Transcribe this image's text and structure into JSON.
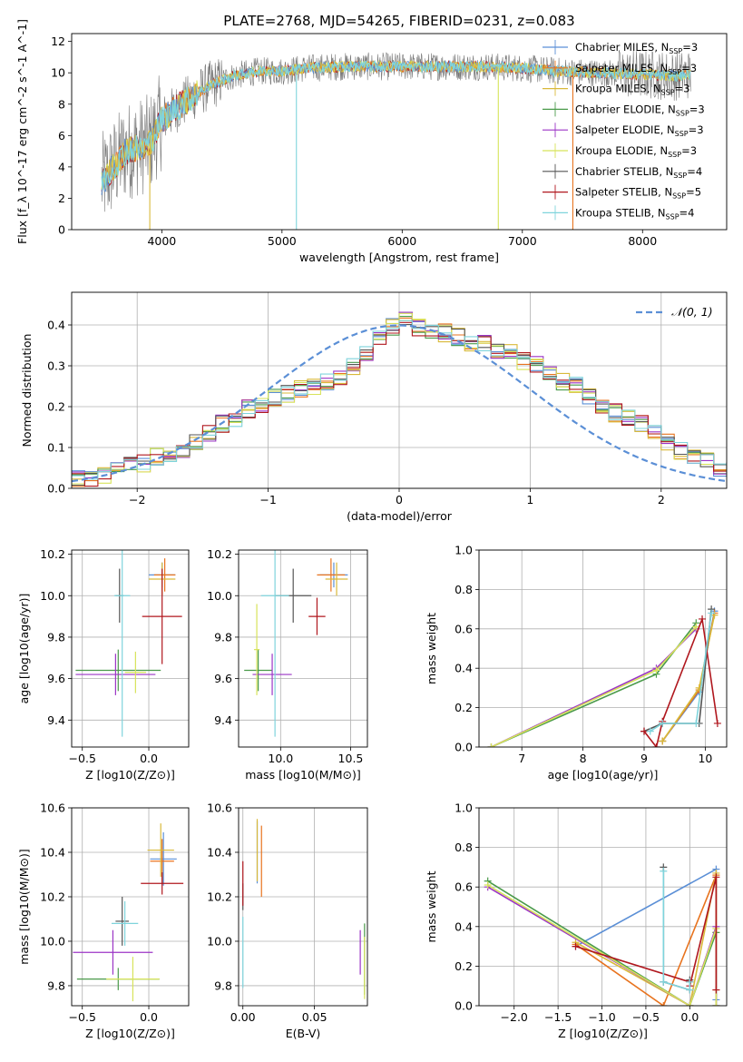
{
  "figure": {
    "title": "PLATE=2768, MJD=54265, FIBERID=0231, z=0.083"
  },
  "colors": {
    "Chabrier MILES": "#5b8fd6",
    "Salpeter MILES": "#e8731e",
    "Kroupa MILES": "#d9b93a",
    "Chabrier ELODIE": "#4a9a4a",
    "Salpeter ELODIE": "#9b34c6",
    "Kroupa ELODIE": "#d7e35a",
    "Chabrier STELIB": "#555555",
    "Salpeter STELIB": "#b0171e",
    "Kroupa STELIB": "#7fd4dc",
    "data": "#777777"
  },
  "chart_data": [
    {
      "id": "spectrum",
      "type": "line",
      "xlabel": "wavelength [Angstrom, rest frame]",
      "ylabel": "Flux [f_λ 10^-17 erg cm^-2 s^-1 A^-1]",
      "xlim": [
        3250,
        8700
      ],
      "ylim": [
        0,
        12.5
      ],
      "xticks": [
        4000,
        5000,
        6000,
        7000,
        8000
      ],
      "yticks": [
        0,
        2,
        4,
        6,
        8,
        10,
        12
      ],
      "grid": false,
      "legend_position": "right",
      "legend": [
        {
          "label": "Chabrier MILES, N",
          "sub": "SSP",
          "rest": "=3",
          "key": "Chabrier MILES"
        },
        {
          "label": "Salpeter MILES, N",
          "sub": "SSP",
          "rest": "=3",
          "key": "Salpeter MILES"
        },
        {
          "label": "Kroupa MILES, N",
          "sub": "SSP",
          "rest": "=3",
          "key": "Kroupa MILES"
        },
        {
          "label": "Chabrier ELODIE, N",
          "sub": "SSP",
          "rest": "=3",
          "key": "Chabrier ELODIE"
        },
        {
          "label": "Salpeter ELODIE, N",
          "sub": "SSP",
          "rest": "=3",
          "key": "Salpeter ELODIE"
        },
        {
          "label": "Kroupa ELODIE, N",
          "sub": "SSP",
          "rest": "=3",
          "key": "Kroupa ELODIE"
        },
        {
          "label": "Chabrier STELIB, N",
          "sub": "SSP",
          "rest": "=4",
          "key": "Chabrier STELIB"
        },
        {
          "label": "Salpeter STELIB, N",
          "sub": "SSP",
          "rest": "=5",
          "key": "Salpeter STELIB"
        },
        {
          "label": "Kroupa STELIB, N",
          "sub": "SSP",
          "rest": "=4",
          "key": "Kroupa STELIB"
        }
      ],
      "continuum": {
        "x": [
          3500,
          3700,
          3900,
          4000,
          4200,
          4400,
          4600,
          4800,
          5000,
          5200,
          5500,
          5800,
          6100,
          6400,
          6700,
          7000,
          7300,
          7600,
          8000,
          8300,
          8400
        ],
        "y": [
          3.0,
          5.0,
          5.5,
          7.0,
          8.2,
          9.2,
          9.8,
          10.1,
          10.1,
          10.3,
          10.4,
          10.4,
          10.4,
          10.4,
          10.4,
          10.3,
          10.1,
          10.0,
          9.9,
          9.8,
          9.9
        ]
      },
      "dropouts": [
        {
          "wavelength": 3900,
          "series": "Kroupa MILES",
          "to": 0
        },
        {
          "wavelength": 5120,
          "series": "Kroupa STELIB",
          "to": 0
        },
        {
          "wavelength": 6800,
          "series": "Kroupa ELODIE",
          "to": 0
        },
        {
          "wavelength": 7420,
          "series": "Salpeter MILES",
          "to": 0
        }
      ]
    },
    {
      "id": "residuals",
      "type": "line",
      "xlabel": "(data-model)/error",
      "ylabel": "Normed distribution",
      "xlim": [
        -2.5,
        2.5
      ],
      "ylim": [
        0,
        0.48
      ],
      "xticks": [
        -2,
        -1,
        0,
        1,
        2
      ],
      "yticks": [
        0.0,
        0.1,
        0.2,
        0.3,
        0.4
      ],
      "grid": true,
      "legend_position": "top-right",
      "legend_label": "𝒩(0, 1)",
      "bins_left": -2.5,
      "bin_width": 0.1,
      "reference_values": [
        0.022,
        0.026,
        0.034,
        0.045,
        0.055,
        0.062,
        0.078,
        0.088,
        0.097,
        0.112,
        0.135,
        0.158,
        0.172,
        0.195,
        0.205,
        0.223,
        0.232,
        0.241,
        0.25,
        0.258,
        0.272,
        0.295,
        0.335,
        0.368,
        0.395,
        0.42,
        0.395,
        0.378,
        0.38,
        0.37,
        0.355,
        0.352,
        0.34,
        0.33,
        0.31,
        0.305,
        0.278,
        0.262,
        0.252,
        0.228,
        0.2,
        0.185,
        0.172,
        0.158,
        0.138,
        0.112,
        0.09,
        0.082,
        0.075,
        0.052,
        0.045,
        0.04,
        0.035
      ]
    },
    {
      "id": "age-vs-Z",
      "type": "scatter",
      "xlabel": "Z [log10(Z/Z⊙)]",
      "ylabel": "age [log10(age/yr)]",
      "xlim": [
        -0.58,
        0.3
      ],
      "ylim": [
        9.27,
        10.22
      ],
      "xticks": [
        -0.5,
        0.0
      ],
      "yticks": [
        9.4,
        9.6,
        9.8,
        10.0,
        10.2
      ],
      "grid": true,
      "points": [
        {
          "x": 0.1,
          "y": 10.1,
          "xe": 0.1,
          "ye": 0.06,
          "s": "Chabrier MILES"
        },
        {
          "x": 0.12,
          "y": 10.1,
          "xe": 0.08,
          "ye": 0.08,
          "s": "Salpeter MILES"
        },
        {
          "x": 0.1,
          "y": 10.08,
          "xe": 0.1,
          "ye": 0.08,
          "s": "Kroupa MILES"
        },
        {
          "x": -0.23,
          "y": 9.64,
          "xe": 0.32,
          "ye": 0.1,
          "s": "Chabrier ELODIE"
        },
        {
          "x": -0.25,
          "y": 9.62,
          "xe": 0.3,
          "ye": 0.1,
          "s": "Salpeter ELODIE"
        },
        {
          "x": -0.1,
          "y": 9.63,
          "xe": 0.08,
          "ye": 0.1,
          "s": "Kroupa ELODIE"
        },
        {
          "x": -0.22,
          "y": 10.0,
          "xe": 0.03,
          "ye": 0.13,
          "s": "Chabrier STELIB"
        },
        {
          "x": 0.1,
          "y": 9.9,
          "xe": 0.15,
          "ye": 0.23,
          "s": "Salpeter STELIB"
        },
        {
          "x": -0.2,
          "y": 10.0,
          "xe": 0.06,
          "ye": 0.68,
          "s": "Kroupa STELIB"
        }
      ]
    },
    {
      "id": "age-vs-mass",
      "type": "scatter",
      "xlabel": "mass [log10(M/M⊙)]",
      "ylabel": "",
      "xlim": [
        9.7,
        10.62
      ],
      "ylim": [
        9.27,
        10.22
      ],
      "xticks": [
        10.0,
        10.5
      ],
      "yticks": [
        9.4,
        9.6,
        9.8,
        10.0,
        10.2
      ],
      "grid": true,
      "points": [
        {
          "x": 10.38,
          "y": 10.1,
          "xe": 0.1,
          "ye": 0.06,
          "s": "Chabrier MILES"
        },
        {
          "x": 10.36,
          "y": 10.1,
          "xe": 0.1,
          "ye": 0.08,
          "s": "Salpeter MILES"
        },
        {
          "x": 10.4,
          "y": 10.08,
          "xe": 0.08,
          "ye": 0.08,
          "s": "Kroupa MILES"
        },
        {
          "x": 9.84,
          "y": 9.64,
          "xe": 0.1,
          "ye": 0.1,
          "s": "Chabrier ELODIE"
        },
        {
          "x": 9.94,
          "y": 9.62,
          "xe": 0.14,
          "ye": 0.1,
          "s": "Salpeter ELODIE"
        },
        {
          "x": 9.83,
          "y": 9.74,
          "xe": 0.02,
          "ye": 0.22,
          "s": "Kroupa ELODIE"
        },
        {
          "x": 10.09,
          "y": 10.0,
          "xe": 0.13,
          "ye": 0.13,
          "s": "Chabrier STELIB"
        },
        {
          "x": 10.26,
          "y": 9.9,
          "xe": 0.06,
          "ye": 0.09,
          "s": "Salpeter STELIB"
        },
        {
          "x": 9.96,
          "y": 10.0,
          "xe": 0.1,
          "ye": 0.68,
          "s": "Kroupa STELIB"
        }
      ]
    },
    {
      "id": "weight-vs-age",
      "type": "line",
      "xlabel": "age [log10(age/yr)]",
      "ylabel": "mass weight",
      "xlim": [
        6.3,
        10.35
      ],
      "ylim": [
        0,
        1.0
      ],
      "xticks": [
        7,
        8,
        9,
        10
      ],
      "yticks": [
        0.0,
        0.2,
        0.4,
        0.6,
        0.8,
        1.0
      ],
      "grid": true,
      "series": [
        {
          "s": "Chabrier MILES",
          "x": [
            9.3,
            9.9,
            10.15
          ],
          "y": [
            0.03,
            0.28,
            0.69
          ]
        },
        {
          "s": "Salpeter MILES",
          "x": [
            9.3,
            9.9,
            10.15
          ],
          "y": [
            0.03,
            0.29,
            0.68
          ]
        },
        {
          "s": "Kroupa MILES",
          "x": [
            9.3,
            9.9,
            10.15
          ],
          "y": [
            0.03,
            0.3,
            0.67
          ]
        },
        {
          "s": "Chabrier ELODIE",
          "x": [
            6.5,
            9.2,
            9.85
          ],
          "y": [
            0.0,
            0.37,
            0.63
          ]
        },
        {
          "s": "Salpeter ELODIE",
          "x": [
            6.5,
            9.2,
            9.85
          ],
          "y": [
            0.0,
            0.4,
            0.6
          ]
        },
        {
          "s": "Kroupa ELODIE",
          "x": [
            6.5,
            9.2,
            9.85
          ],
          "y": [
            0.0,
            0.39,
            0.61
          ]
        },
        {
          "s": "Chabrier STELIB",
          "x": [
            9.0,
            9.3,
            9.9,
            10.1
          ],
          "y": [
            0.08,
            0.12,
            0.12,
            0.7
          ]
        },
        {
          "s": "Salpeter STELIB",
          "x": [
            9.0,
            9.2,
            9.3,
            9.95,
            10.2
          ],
          "y": [
            0.08,
            0.0,
            0.13,
            0.65,
            0.12
          ]
        },
        {
          "s": "Kroupa STELIB",
          "x": [
            9.1,
            9.3,
            9.85,
            10.1
          ],
          "y": [
            0.08,
            0.12,
            0.12,
            0.68
          ]
        }
      ]
    },
    {
      "id": "mass-vs-Z",
      "type": "scatter",
      "xlabel": "Z [log10(Z/Z⊙)]",
      "ylabel": "mass [log10(M/M⊙)]",
      "xlim": [
        -0.58,
        0.3
      ],
      "ylim": [
        9.71,
        10.6
      ],
      "xticks": [
        -0.5,
        0.0
      ],
      "yticks": [
        9.8,
        10.0,
        10.2,
        10.4,
        10.6
      ],
      "grid": true,
      "points": [
        {
          "x": 0.11,
          "y": 10.37,
          "xe": 0.1,
          "ye": 0.12,
          "s": "Chabrier MILES"
        },
        {
          "x": 0.1,
          "y": 10.36,
          "xe": 0.09,
          "ye": 0.1,
          "s": "Salpeter MILES"
        },
        {
          "x": 0.09,
          "y": 10.41,
          "xe": 0.1,
          "ye": 0.12,
          "s": "Kroupa MILES"
        },
        {
          "x": -0.23,
          "y": 9.83,
          "xe": 0.31,
          "ye": 0.05,
          "s": "Chabrier ELODIE"
        },
        {
          "x": -0.27,
          "y": 9.95,
          "xe": 0.3,
          "ye": 0.1,
          "s": "Salpeter ELODIE"
        },
        {
          "x": -0.12,
          "y": 9.83,
          "xe": 0.2,
          "ye": 0.1,
          "s": "Kroupa ELODIE"
        },
        {
          "x": -0.2,
          "y": 10.09,
          "xe": 0.05,
          "ye": 0.11,
          "s": "Chabrier STELIB"
        },
        {
          "x": 0.1,
          "y": 10.26,
          "xe": 0.16,
          "ye": 0.05,
          "s": "Salpeter STELIB"
        },
        {
          "x": -0.18,
          "y": 10.08,
          "xe": 0.1,
          "ye": 0.1,
          "s": "Kroupa STELIB"
        }
      ]
    },
    {
      "id": "mass-vs-EBV",
      "type": "scatter",
      "xlabel": "E(B-V)",
      "ylabel": "",
      "xlim": [
        -0.003,
        0.087
      ],
      "ylim": [
        9.71,
        10.6
      ],
      "xticks": [
        0.0,
        0.05
      ],
      "yticks": [
        9.8,
        10.0,
        10.2,
        10.4,
        10.6
      ],
      "grid": true,
      "points": [
        {
          "x": 0.01,
          "y": 10.4,
          "xe": 0.0,
          "ye": 0.14,
          "s": "Chabrier MILES"
        },
        {
          "x": 0.013,
          "y": 10.36,
          "xe": 0.0,
          "ye": 0.16,
          "s": "Salpeter MILES"
        },
        {
          "x": 0.01,
          "y": 10.41,
          "xe": 0.0,
          "ye": 0.14,
          "s": "Kroupa MILES"
        },
        {
          "x": 0.085,
          "y": 9.92,
          "xe": 0.0,
          "ye": 0.16,
          "s": "Chabrier ELODIE"
        },
        {
          "x": 0.082,
          "y": 9.95,
          "xe": 0.0,
          "ye": 0.1,
          "s": "Salpeter ELODIE"
        },
        {
          "x": 0.085,
          "y": 9.88,
          "xe": 0.0,
          "ye": 0.14,
          "s": "Kroupa ELODIE"
        },
        {
          "x": 0.0,
          "y": 10.2,
          "xe": 0.0,
          "ye": 0.06,
          "s": "Chabrier STELIB"
        },
        {
          "x": 0.0,
          "y": 10.26,
          "xe": 0.0,
          "ye": 0.1,
          "s": "Salpeter STELIB"
        },
        {
          "x": 0.0,
          "y": 9.95,
          "xe": 0.0,
          "ye": 0.16,
          "s": "Kroupa STELIB"
        }
      ]
    },
    {
      "id": "weight-vs-Z",
      "type": "line",
      "xlabel": "Z [log10(Z/Z⊙)]",
      "ylabel": "mass weight",
      "xlim": [
        -2.4,
        0.42
      ],
      "ylim": [
        0,
        1.0
      ],
      "xticks": [
        -2.0,
        -1.5,
        -1.0,
        -0.5,
        0.0
      ],
      "yticks": [
        0.0,
        0.2,
        0.4,
        0.6,
        0.8,
        1.0
      ],
      "grid": true,
      "series": [
        {
          "s": "Chabrier MILES",
          "x": [
            -1.3,
            0.3,
            0.3
          ],
          "y": [
            0.3,
            0.69,
            0.03
          ]
        },
        {
          "s": "Salpeter MILES",
          "x": [
            -1.3,
            -0.3,
            0.3,
            0.3
          ],
          "y": [
            0.31,
            0.0,
            0.66,
            0.08
          ]
        },
        {
          "s": "Kroupa MILES",
          "x": [
            -1.3,
            0.0,
            0.3,
            0.3
          ],
          "y": [
            0.32,
            0.0,
            0.67,
            0.37
          ]
        },
        {
          "s": "Chabrier ELODIE",
          "x": [
            -2.3,
            0.0,
            0.3,
            0.3
          ],
          "y": [
            0.63,
            0.0,
            0.37,
            0.0
          ]
        },
        {
          "s": "Salpeter ELODIE",
          "x": [
            -2.3,
            0.0,
            0.3,
            0.3
          ],
          "y": [
            0.6,
            0.0,
            0.4,
            0.0
          ]
        },
        {
          "s": "Kroupa ELODIE",
          "x": [
            -2.3,
            0.0,
            0.3,
            0.3
          ],
          "y": [
            0.61,
            0.0,
            0.39,
            0.0
          ]
        },
        {
          "s": "Chabrier STELIB",
          "x": [
            -0.3,
            -0.3,
            0.0,
            0.0
          ],
          "y": [
            0.7,
            0.12,
            0.08,
            0.13
          ]
        },
        {
          "s": "Salpeter STELIB",
          "x": [
            -1.3,
            0.0,
            0.0,
            0.3,
            0.3
          ],
          "y": [
            0.3,
            0.12,
            0.1,
            0.65,
            0.08
          ]
        },
        {
          "s": "Kroupa STELIB",
          "x": [
            -0.3,
            -0.3,
            0.0,
            0.0
          ],
          "y": [
            0.68,
            0.12,
            0.08,
            0.12
          ]
        }
      ]
    }
  ]
}
